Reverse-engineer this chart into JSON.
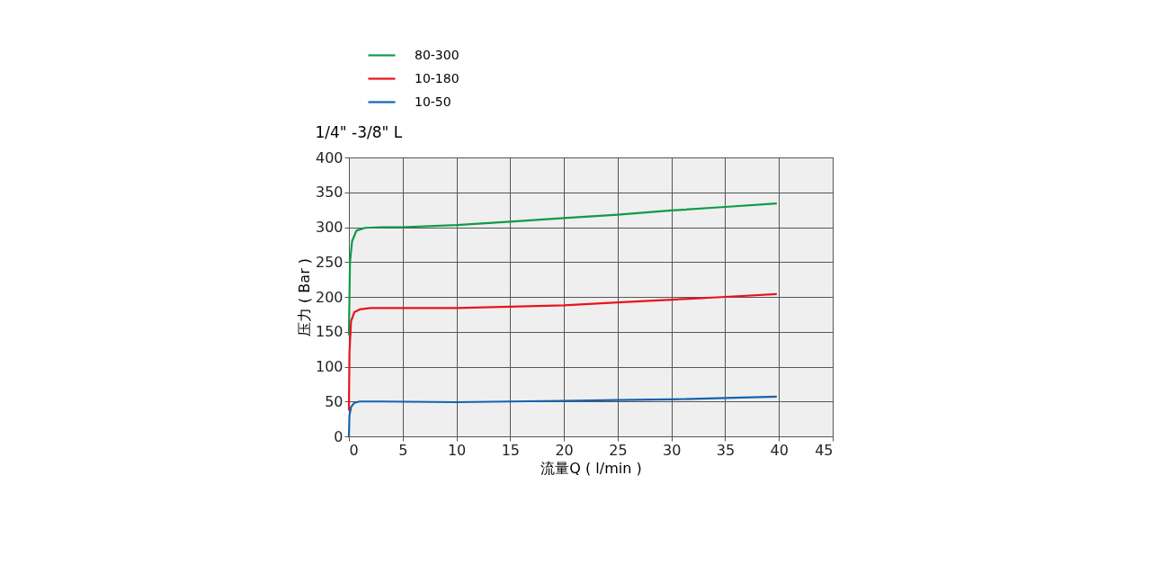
{
  "chart_data": {
    "type": "line",
    "title": "1/4\" -3/8\" L",
    "xlabel": "流量Q ( l/min )",
    "ylabel": "压力 ( Bar )",
    "xlim": [
      0,
      45
    ],
    "xticks": [
      0,
      5,
      10,
      15,
      20,
      25,
      30,
      35,
      40,
      45
    ],
    "ylim": [
      0,
      400
    ],
    "yticks": [
      0,
      50,
      100,
      150,
      200,
      250,
      300,
      350,
      400
    ],
    "grid": true,
    "legend": "top left",
    "marker": "none",
    "line_style": "solid",
    "series": [
      {
        "name": "80-300",
        "color": "#109a48",
        "x": [
          0,
          0.1,
          0.3,
          0.7,
          1.5,
          3,
          5,
          10,
          15,
          20,
          25,
          30,
          35,
          39.8
        ],
        "values": [
          145,
          250,
          280,
          295,
          299,
          300,
          300,
          303,
          308,
          313,
          318,
          324,
          329,
          334
        ]
      },
      {
        "name": "10-180",
        "color": "#e8141c",
        "x": [
          0,
          0.05,
          0.2,
          0.5,
          1,
          2,
          5,
          10,
          15,
          20,
          25,
          30,
          35,
          39.8
        ],
        "values": [
          37,
          120,
          165,
          178,
          182,
          184,
          184,
          184,
          186,
          188,
          192,
          196,
          200,
          204
        ]
      },
      {
        "name": "10-50",
        "color": "#1463b0",
        "x": [
          0,
          0.05,
          0.2,
          0.5,
          1,
          3,
          10,
          15,
          20,
          25,
          30,
          35,
          39.8
        ],
        "values": [
          0,
          30,
          42,
          48,
          50,
          50,
          49,
          50,
          51,
          52,
          53,
          55,
          57
        ]
      }
    ]
  }
}
